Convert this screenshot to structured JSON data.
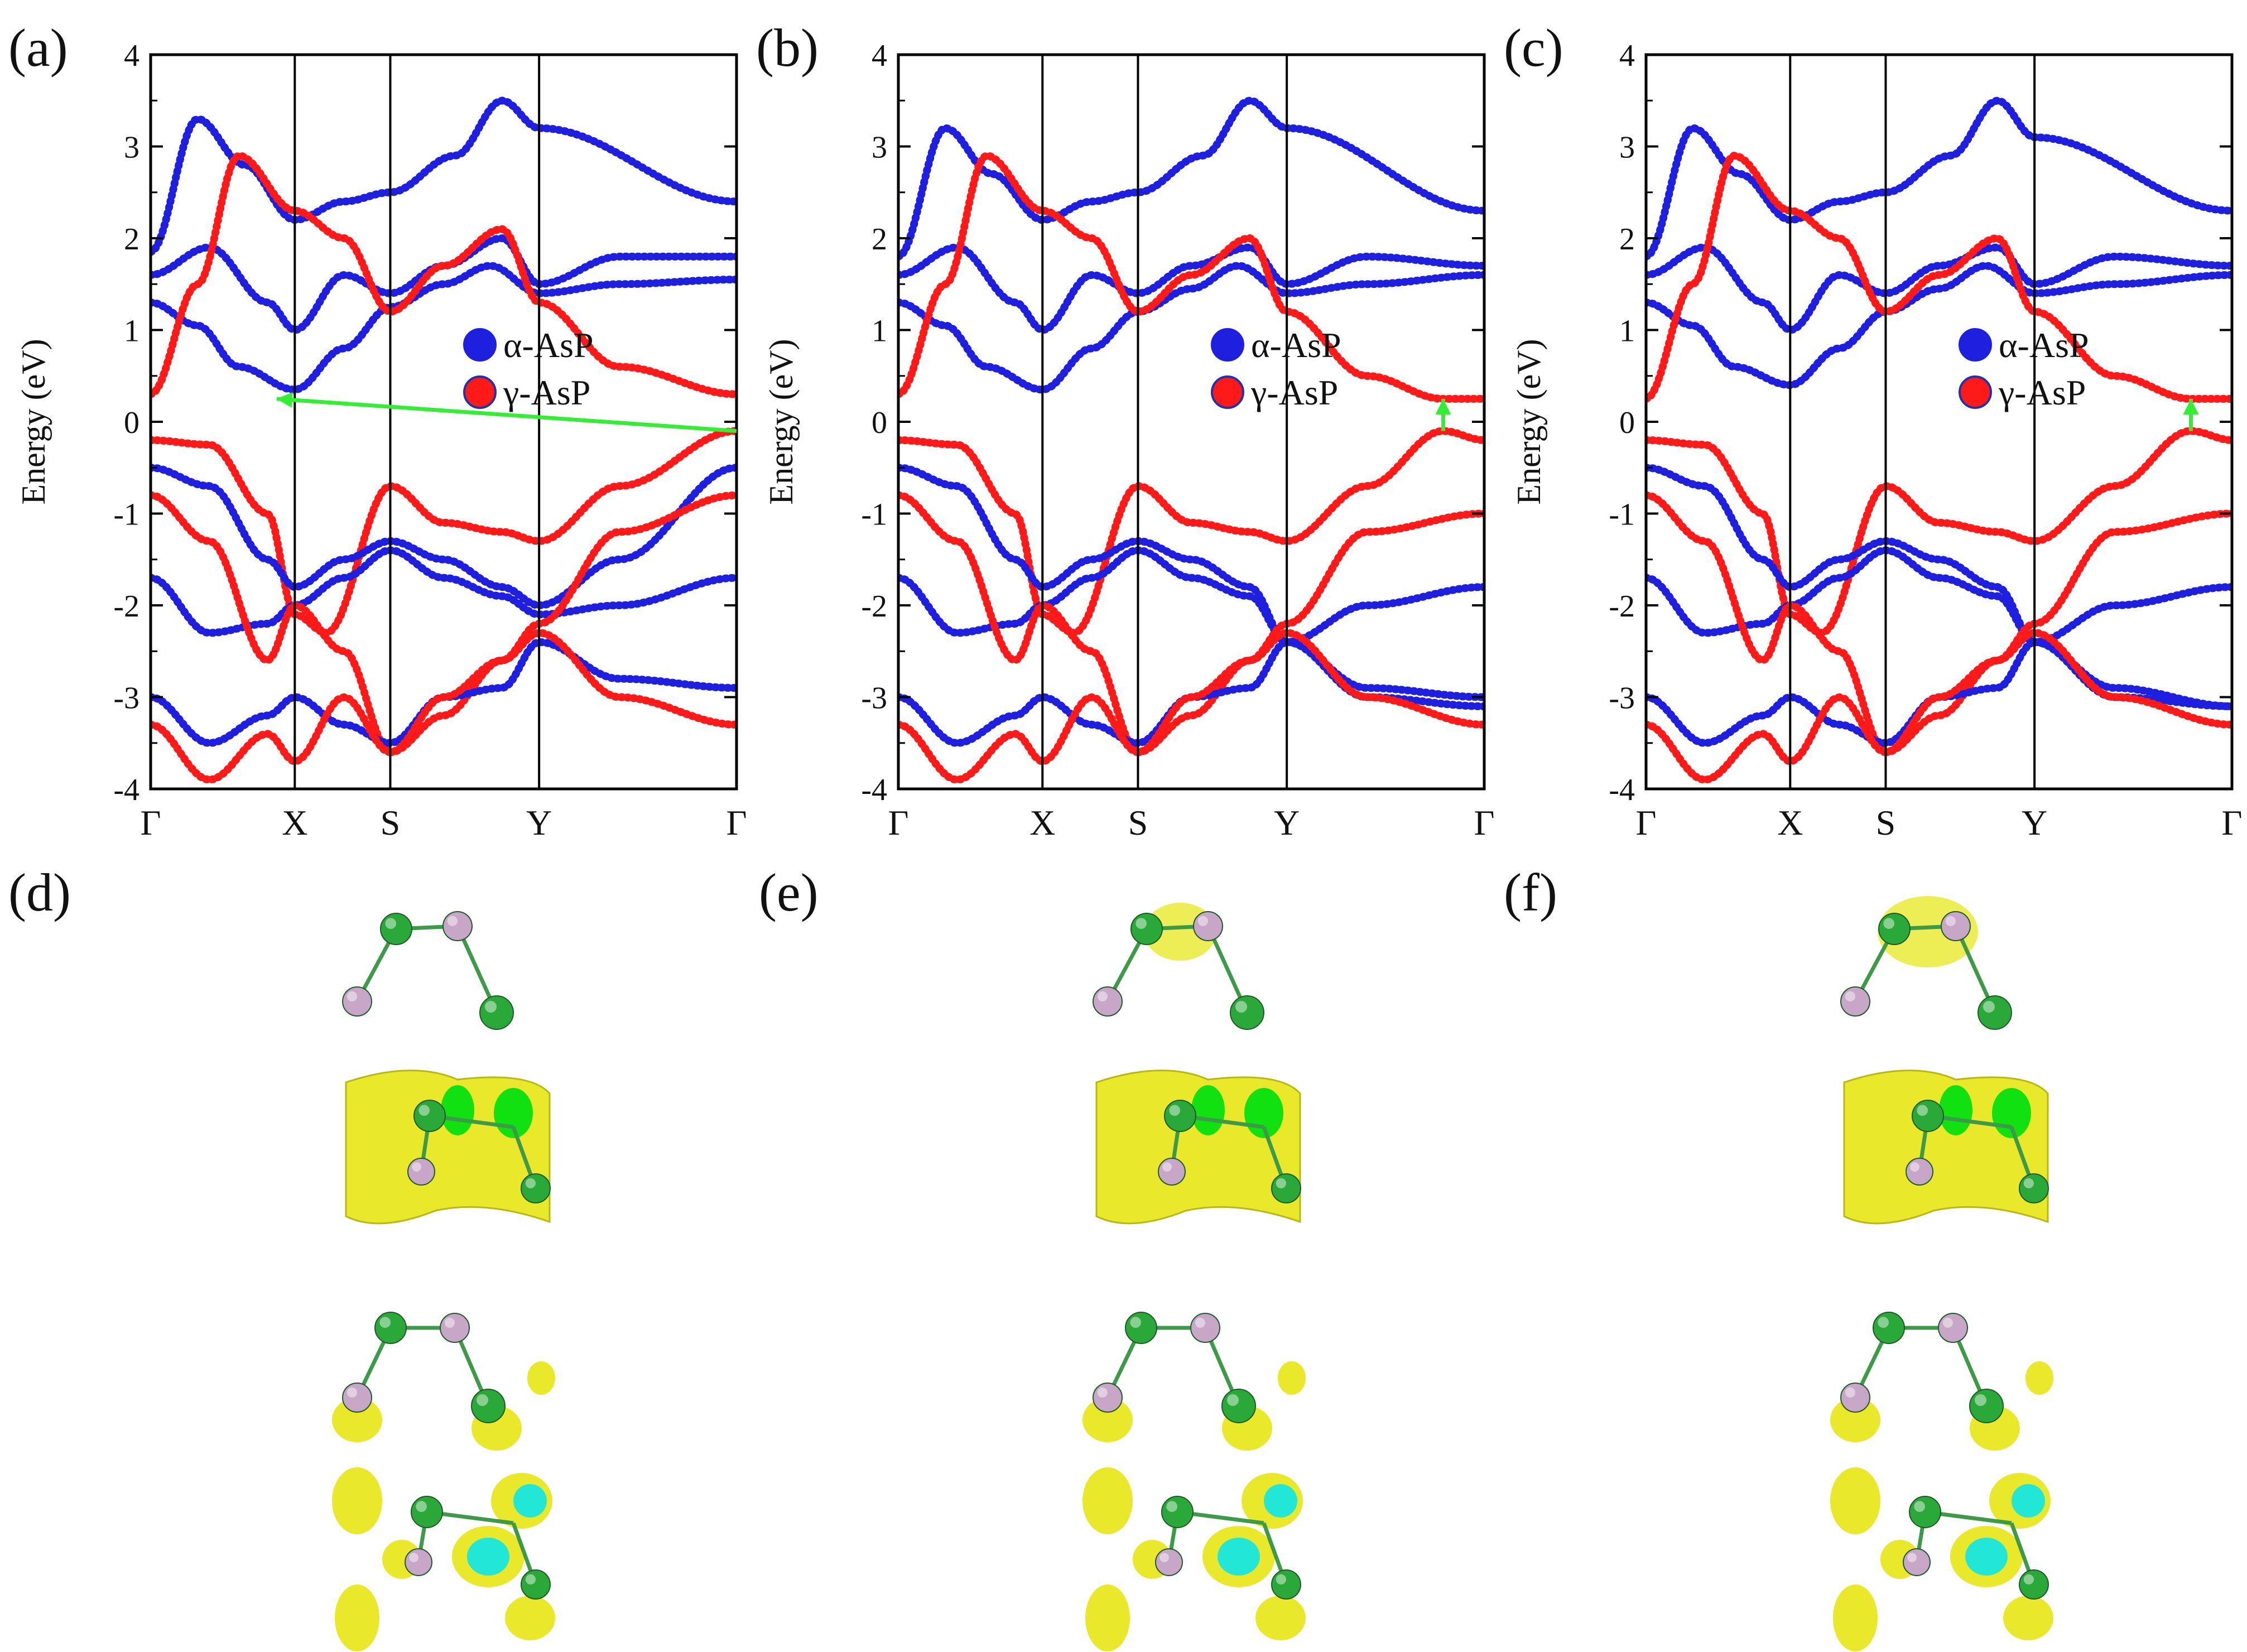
{
  "legend": {
    "alpha": {
      "label": "α-AsP",
      "color": "#1f1fe0"
    },
    "gamma": {
      "label": "γ-AsP",
      "color": "#ff1a1a"
    }
  },
  "colors": {
    "blue": "#1f1fe0",
    "red": "#ff1a1a",
    "purple": "#7a1f8a",
    "arrow": "#33ee33",
    "yellow": "#e9e82a",
    "green_atom": "#2aa83a",
    "pink_atom": "#c8a6c8",
    "cyan": "#22e6d6",
    "bright_green": "#11e011"
  },
  "chart_data": [
    {
      "panel_label": "(a)",
      "type": "line",
      "title": "",
      "xlabel": "",
      "ylabel": "Energy (eV)",
      "ylim": [
        -4,
        4
      ],
      "yticks": [
        "-4",
        "-3",
        "-2",
        "-1",
        "0",
        "1",
        "2",
        "3",
        "4"
      ],
      "kpoints": [
        "Γ",
        "X",
        "S",
        "Y",
        "Γ"
      ],
      "kpoint_positions": [
        0,
        0.246,
        0.409,
        0.663,
        1.0
      ],
      "legend": [
        "α-AsP",
        "γ-AsP"
      ],
      "transition": {
        "type": "indirect",
        "from": [
          1.0,
          -0.1
        ],
        "to": [
          0.215,
          0.25
        ]
      },
      "series": [
        {
          "name": "α-AsP conduction 1",
          "layer": "α",
          "x": [
            0,
            0.08,
            0.15,
            0.246,
            0.33,
            0.409,
            0.5,
            0.58,
            0.663,
            0.8,
            1.0
          ],
          "values": [
            1.3,
            1.05,
            0.6,
            0.35,
            0.8,
            1.25,
            1.5,
            1.7,
            1.4,
            1.5,
            1.55
          ]
        },
        {
          "name": "α-AsP conduction 2",
          "layer": "α",
          "x": [
            0,
            0.1,
            0.2,
            0.246,
            0.33,
            0.409,
            0.5,
            0.6,
            0.663,
            0.8,
            1.0
          ],
          "values": [
            1.6,
            1.9,
            1.3,
            1.0,
            1.6,
            1.4,
            1.7,
            2.0,
            1.5,
            1.8,
            1.8
          ]
        },
        {
          "name": "α-AsP conduction 3",
          "layer": "α",
          "x": [
            0,
            0.08,
            0.16,
            0.246,
            0.33,
            0.409,
            0.52,
            0.6,
            0.663,
            1.0
          ],
          "values": [
            1.85,
            3.3,
            2.8,
            2.2,
            2.4,
            2.5,
            2.9,
            3.5,
            3.2,
            2.4
          ]
        },
        {
          "name": "γ-AsP conduction",
          "layer": "γ",
          "x": [
            0,
            0.08,
            0.15,
            0.246,
            0.33,
            0.409,
            0.5,
            0.6,
            0.663,
            0.8,
            1.0
          ],
          "values": [
            0.3,
            1.5,
            2.9,
            2.3,
            2.0,
            1.2,
            1.7,
            2.1,
            1.3,
            0.6,
            0.3
          ]
        },
        {
          "name": "γ-AsP valence 1",
          "layer": "γ",
          "x": [
            0,
            0.1,
            0.2,
            0.246,
            0.3,
            0.409,
            0.5,
            0.6,
            0.663,
            0.8,
            1.0
          ],
          "values": [
            -0.2,
            -0.25,
            -1.0,
            -2.1,
            -2.3,
            -0.7,
            -1.1,
            -1.2,
            -1.3,
            -0.7,
            -0.1
          ]
        },
        {
          "name": "α-AsP valence 1",
          "layer": "α",
          "x": [
            0,
            0.1,
            0.2,
            0.246,
            0.33,
            0.409,
            0.5,
            0.6,
            0.663,
            0.8,
            1.0
          ],
          "values": [
            -0.5,
            -0.7,
            -1.5,
            -1.8,
            -1.5,
            -1.3,
            -1.5,
            -1.8,
            -2.0,
            -1.5,
            -0.5
          ]
        },
        {
          "name": "α-AsP valence 2",
          "layer": "α",
          "x": [
            0,
            0.1,
            0.2,
            0.246,
            0.33,
            0.409,
            0.5,
            0.6,
            0.663,
            0.8,
            1.0
          ],
          "values": [
            -1.7,
            -2.3,
            -2.2,
            -2.0,
            -1.7,
            -1.4,
            -1.7,
            -1.9,
            -2.1,
            -2.0,
            -1.7
          ]
        },
        {
          "name": "γ-AsP valence 2",
          "layer": "γ",
          "x": [
            0,
            0.1,
            0.2,
            0.246,
            0.33,
            0.409,
            0.5,
            0.6,
            0.663,
            0.8,
            1.0
          ],
          "values": [
            -0.8,
            -1.3,
            -2.6,
            -2.0,
            -2.5,
            -3.6,
            -3.2,
            -2.6,
            -2.2,
            -1.2,
            -0.8
          ]
        },
        {
          "name": "α-AsP valence 3",
          "layer": "α",
          "x": [
            0,
            0.1,
            0.2,
            0.246,
            0.33,
            0.409,
            0.5,
            0.6,
            0.663,
            0.8,
            1.0
          ],
          "values": [
            -3.0,
            -3.5,
            -3.2,
            -3.0,
            -3.3,
            -3.5,
            -3.0,
            -2.9,
            -2.4,
            -2.8,
            -2.9
          ]
        },
        {
          "name": "γ-AsP valence 3",
          "layer": "γ",
          "x": [
            0,
            0.1,
            0.2,
            0.246,
            0.33,
            0.409,
            0.5,
            0.6,
            0.663,
            0.8,
            1.0
          ],
          "values": [
            -3.3,
            -3.9,
            -3.4,
            -3.7,
            -3.0,
            -3.6,
            -3.0,
            -2.6,
            -2.3,
            -3.0,
            -3.3
          ]
        }
      ]
    },
    {
      "panel_label": "(b)",
      "type": "line",
      "title": "",
      "xlabel": "",
      "ylabel": "Energy (eV)",
      "ylim": [
        -4,
        4
      ],
      "yticks": [
        "-4",
        "-3",
        "-2",
        "-1",
        "0",
        "1",
        "2",
        "3",
        "4"
      ],
      "kpoints": [
        "Γ",
        "X",
        "S",
        "Y",
        "Γ"
      ],
      "kpoint_positions": [
        0,
        0.246,
        0.409,
        0.663,
        1.0
      ],
      "legend": [
        "α-AsP",
        "γ-AsP"
      ],
      "transition": {
        "type": "direct",
        "from": [
          0.93,
          -0.1
        ],
        "to": [
          0.93,
          0.25
        ]
      },
      "series": [
        {
          "name": "α-AsP conduction 1",
          "layer": "α",
          "x": [
            0,
            0.08,
            0.15,
            0.246,
            0.33,
            0.409,
            0.5,
            0.58,
            0.663,
            0.8,
            1.0
          ],
          "values": [
            1.3,
            1.05,
            0.6,
            0.35,
            0.8,
            1.2,
            1.45,
            1.7,
            1.4,
            1.5,
            1.6
          ]
        },
        {
          "name": "α-AsP conduction 2",
          "layer": "α",
          "x": [
            0,
            0.1,
            0.2,
            0.246,
            0.33,
            0.409,
            0.5,
            0.6,
            0.663,
            0.8,
            1.0
          ],
          "values": [
            1.6,
            1.9,
            1.3,
            1.0,
            1.6,
            1.4,
            1.7,
            1.9,
            1.5,
            1.8,
            1.7
          ]
        },
        {
          "name": "α-AsP conduction 3",
          "layer": "α",
          "x": [
            0,
            0.08,
            0.16,
            0.246,
            0.33,
            0.409,
            0.52,
            0.6,
            0.663,
            1.0
          ],
          "values": [
            1.8,
            3.2,
            2.7,
            2.2,
            2.4,
            2.5,
            2.9,
            3.5,
            3.2,
            2.3
          ]
        },
        {
          "name": "γ-AsP conduction",
          "layer": "γ",
          "x": [
            0,
            0.08,
            0.15,
            0.246,
            0.33,
            0.409,
            0.5,
            0.6,
            0.663,
            0.8,
            0.93,
            1.0
          ],
          "values": [
            0.3,
            1.5,
            2.9,
            2.3,
            2.0,
            1.2,
            1.6,
            2.0,
            1.2,
            0.5,
            0.25,
            0.25
          ]
        },
        {
          "name": "γ-AsP valence 1",
          "layer": "γ",
          "x": [
            0,
            0.1,
            0.2,
            0.246,
            0.3,
            0.409,
            0.5,
            0.6,
            0.663,
            0.8,
            0.93,
            1.0
          ],
          "values": [
            -0.2,
            -0.25,
            -1.0,
            -2.1,
            -2.3,
            -0.7,
            -1.1,
            -1.2,
            -1.3,
            -0.7,
            -0.1,
            -0.2
          ]
        },
        {
          "name": "α-AsP valence 1",
          "layer": "α",
          "x": [
            0,
            0.1,
            0.2,
            0.246,
            0.33,
            0.409,
            0.5,
            0.6,
            0.663,
            0.8,
            1.0
          ],
          "values": [
            -0.5,
            -0.7,
            -1.5,
            -1.8,
            -1.5,
            -1.3,
            -1.5,
            -1.8,
            -2.4,
            -2.0,
            -1.8
          ]
        },
        {
          "name": "α-AsP valence 2",
          "layer": "α",
          "x": [
            0,
            0.1,
            0.2,
            0.246,
            0.33,
            0.409,
            0.5,
            0.6,
            0.663,
            0.8,
            1.0
          ],
          "values": [
            -1.7,
            -2.3,
            -2.2,
            -2.0,
            -1.7,
            -1.4,
            -1.7,
            -1.9,
            -2.4,
            -2.9,
            -3.0
          ]
        },
        {
          "name": "γ-AsP valence 2",
          "layer": "γ",
          "x": [
            0,
            0.1,
            0.2,
            0.246,
            0.33,
            0.409,
            0.5,
            0.6,
            0.663,
            0.8,
            1.0
          ],
          "values": [
            -0.8,
            -1.3,
            -2.6,
            -2.0,
            -2.5,
            -3.6,
            -3.2,
            -2.6,
            -2.2,
            -1.2,
            -1.0
          ]
        },
        {
          "name": "α-AsP valence 3",
          "layer": "α",
          "x": [
            0,
            0.1,
            0.2,
            0.246,
            0.33,
            0.409,
            0.5,
            0.6,
            0.663,
            0.8,
            1.0
          ],
          "values": [
            -3.0,
            -3.5,
            -3.2,
            -3.0,
            -3.3,
            -3.5,
            -3.0,
            -2.9,
            -2.4,
            -3.0,
            -3.1
          ]
        },
        {
          "name": "γ-AsP valence 3",
          "layer": "γ",
          "x": [
            0,
            0.1,
            0.2,
            0.246,
            0.33,
            0.409,
            0.5,
            0.6,
            0.663,
            0.8,
            1.0
          ],
          "values": [
            -3.3,
            -3.9,
            -3.4,
            -3.7,
            -3.0,
            -3.6,
            -3.0,
            -2.6,
            -2.3,
            -3.0,
            -3.3
          ]
        }
      ]
    },
    {
      "panel_label": "(c)",
      "type": "line",
      "title": "",
      "xlabel": "",
      "ylabel": "Energy (eV)",
      "ylim": [
        -4,
        4
      ],
      "yticks": [
        "-4",
        "-3",
        "-2",
        "-1",
        "0",
        "1",
        "2",
        "3",
        "4"
      ],
      "kpoints": [
        "Γ",
        "X",
        "S",
        "Y",
        "Γ"
      ],
      "kpoint_positions": [
        0,
        0.246,
        0.409,
        0.663,
        1.0
      ],
      "legend": [
        "α-AsP",
        "γ-AsP"
      ],
      "transition": {
        "type": "direct",
        "from": [
          0.93,
          -0.1
        ],
        "to": [
          0.93,
          0.25
        ]
      },
      "series": [
        {
          "name": "α-AsP conduction 1",
          "layer": "α",
          "x": [
            0,
            0.08,
            0.15,
            0.246,
            0.33,
            0.409,
            0.5,
            0.58,
            0.663,
            0.8,
            1.0
          ],
          "values": [
            1.3,
            1.05,
            0.6,
            0.4,
            0.8,
            1.2,
            1.45,
            1.7,
            1.4,
            1.5,
            1.6
          ]
        },
        {
          "name": "α-AsP conduction 2",
          "layer": "α",
          "x": [
            0,
            0.1,
            0.2,
            0.246,
            0.33,
            0.409,
            0.5,
            0.6,
            0.663,
            0.8,
            1.0
          ],
          "values": [
            1.6,
            1.9,
            1.3,
            1.0,
            1.6,
            1.4,
            1.7,
            1.9,
            1.5,
            1.8,
            1.7
          ]
        },
        {
          "name": "α-AsP conduction 3",
          "layer": "α",
          "x": [
            0,
            0.08,
            0.16,
            0.246,
            0.33,
            0.409,
            0.52,
            0.6,
            0.663,
            1.0
          ],
          "values": [
            1.8,
            3.2,
            2.7,
            2.2,
            2.4,
            2.5,
            2.9,
            3.5,
            3.1,
            2.3
          ]
        },
        {
          "name": "γ-AsP conduction",
          "layer": "γ",
          "x": [
            0,
            0.08,
            0.15,
            0.246,
            0.33,
            0.409,
            0.5,
            0.6,
            0.663,
            0.8,
            0.93,
            1.0
          ],
          "values": [
            0.25,
            1.5,
            2.9,
            2.3,
            2.0,
            1.2,
            1.6,
            2.0,
            1.2,
            0.5,
            0.25,
            0.25
          ]
        },
        {
          "name": "γ-AsP valence 1",
          "layer": "γ",
          "x": [
            0,
            0.1,
            0.2,
            0.246,
            0.3,
            0.409,
            0.5,
            0.6,
            0.663,
            0.8,
            0.93,
            1.0
          ],
          "values": [
            -0.2,
            -0.25,
            -1.0,
            -2.1,
            -2.3,
            -0.7,
            -1.1,
            -1.2,
            -1.3,
            -0.7,
            -0.1,
            -0.2
          ]
        },
        {
          "name": "α-AsP valence 1",
          "layer": "α",
          "x": [
            0,
            0.1,
            0.2,
            0.246,
            0.33,
            0.409,
            0.5,
            0.6,
            0.663,
            0.8,
            1.0
          ],
          "values": [
            -0.5,
            -0.7,
            -1.5,
            -1.8,
            -1.5,
            -1.3,
            -1.5,
            -1.8,
            -2.4,
            -2.0,
            -1.8
          ]
        },
        {
          "name": "α-AsP valence 2",
          "layer": "α",
          "x": [
            0,
            0.1,
            0.2,
            0.246,
            0.33,
            0.409,
            0.5,
            0.6,
            0.663,
            0.8,
            1.0
          ],
          "values": [
            -1.7,
            -2.3,
            -2.2,
            -2.0,
            -1.7,
            -1.4,
            -1.7,
            -1.9,
            -2.4,
            -2.9,
            -3.1
          ]
        },
        {
          "name": "γ-AsP valence 2",
          "layer": "γ",
          "x": [
            0,
            0.1,
            0.2,
            0.246,
            0.33,
            0.409,
            0.5,
            0.6,
            0.663,
            0.8,
            1.0
          ],
          "values": [
            -0.8,
            -1.3,
            -2.6,
            -2.0,
            -2.5,
            -3.6,
            -3.2,
            -2.6,
            -2.2,
            -1.2,
            -1.0
          ]
        },
        {
          "name": "α-AsP valence 3",
          "layer": "α",
          "x": [
            0,
            0.1,
            0.2,
            0.246,
            0.33,
            0.409,
            0.5,
            0.6,
            0.663,
            0.8,
            1.0
          ],
          "values": [
            -3.0,
            -3.5,
            -3.2,
            -3.0,
            -3.3,
            -3.5,
            -3.0,
            -2.9,
            -2.4,
            -3.0,
            -3.1
          ]
        },
        {
          "name": "γ-AsP valence 3",
          "layer": "γ",
          "x": [
            0,
            0.1,
            0.2,
            0.246,
            0.33,
            0.409,
            0.5,
            0.6,
            0.663,
            0.8,
            1.0
          ],
          "values": [
            -3.3,
            -3.9,
            -3.4,
            -3.7,
            -3.0,
            -3.6,
            -3.0,
            -2.6,
            -2.3,
            -3.0,
            -3.3
          ]
        }
      ]
    }
  ],
  "structure_panels": [
    {
      "panel_label": "(d)"
    },
    {
      "panel_label": "(e)"
    },
    {
      "panel_label": "(f)"
    }
  ]
}
